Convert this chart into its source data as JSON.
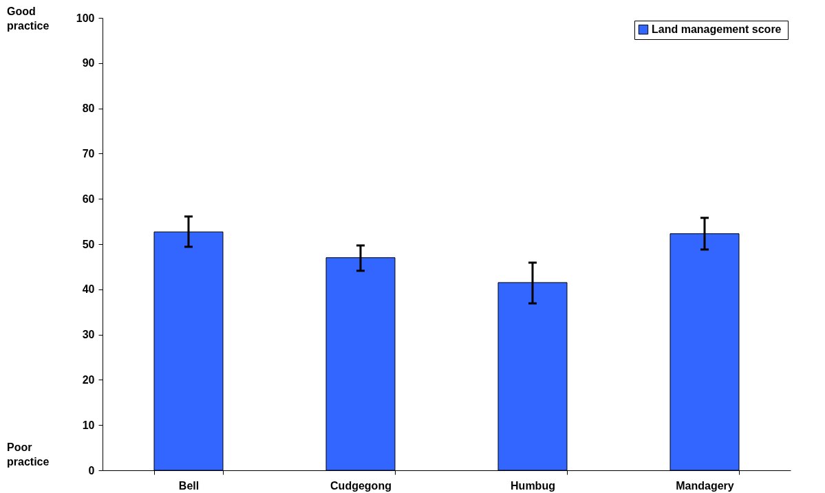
{
  "chart_data": {
    "type": "bar",
    "categories": [
      "Bell",
      "Cudgegong",
      "Humbug",
      "Mandagery"
    ],
    "series": [
      {
        "name": "Land management  score",
        "color": "#3366ff",
        "values": [
          52.7,
          47.0,
          41.5,
          52.3
        ],
        "errors": [
          [
            49.4,
            56.1
          ],
          [
            44.1,
            49.7
          ],
          [
            36.9,
            45.9
          ],
          [
            48.8,
            55.8
          ]
        ]
      }
    ],
    "ylim": [
      0,
      100
    ],
    "yticks": [
      0,
      10,
      20,
      30,
      40,
      50,
      60,
      70,
      80,
      90,
      100
    ],
    "grid": false,
    "legend": "top right",
    "annotations": [
      "Good practice",
      "Poor practice"
    ]
  }
}
